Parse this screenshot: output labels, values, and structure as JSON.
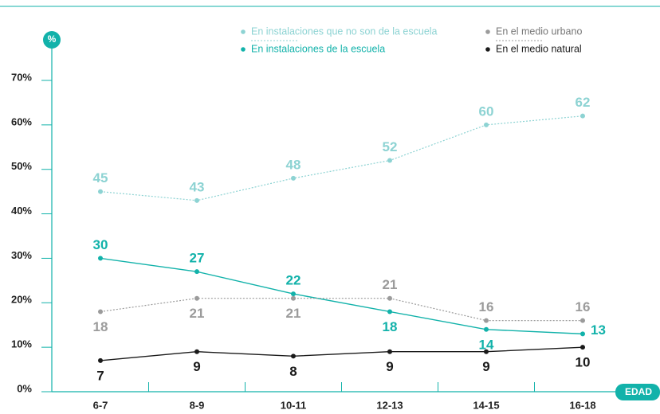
{
  "chart_data": {
    "type": "line",
    "x_label": "EDAD",
    "y_label": "%",
    "categories": [
      "6-7",
      "8-9",
      "10-11",
      "12-13",
      "14-15",
      "16-18"
    ],
    "series": [
      {
        "name": "En instalaciones que no son de la escuela",
        "color": "#8dd3d3",
        "line_style": "dotted",
        "values": [
          45,
          43,
          48,
          52,
          60,
          62
        ]
      },
      {
        "name": "En instalaciones de la escuela",
        "color": "#12b2aa",
        "line_style": "solid",
        "values": [
          30,
          27,
          22,
          18,
          14,
          13
        ]
      },
      {
        "name": "En el medio urbano",
        "color": "#9b9b9b",
        "line_style": "dotted",
        "values": [
          18,
          21,
          21,
          21,
          16,
          16
        ]
      },
      {
        "name": "En el medio natural",
        "color": "#1a1a1a",
        "line_style": "solid",
        "values": [
          7,
          9,
          8,
          9,
          9,
          10
        ]
      }
    ],
    "ylim": [
      0,
      70
    ],
    "yticks": [
      {
        "value": 0,
        "label": "0%"
      },
      {
        "value": 10,
        "label": "10%"
      },
      {
        "value": 20,
        "label": "20%"
      },
      {
        "value": 30,
        "label": "30%"
      },
      {
        "value": 40,
        "label": "40%"
      },
      {
        "value": 50,
        "label": "50%"
      },
      {
        "value": 60,
        "label": "60%"
      },
      {
        "value": 70,
        "label": "70%"
      }
    ]
  }
}
